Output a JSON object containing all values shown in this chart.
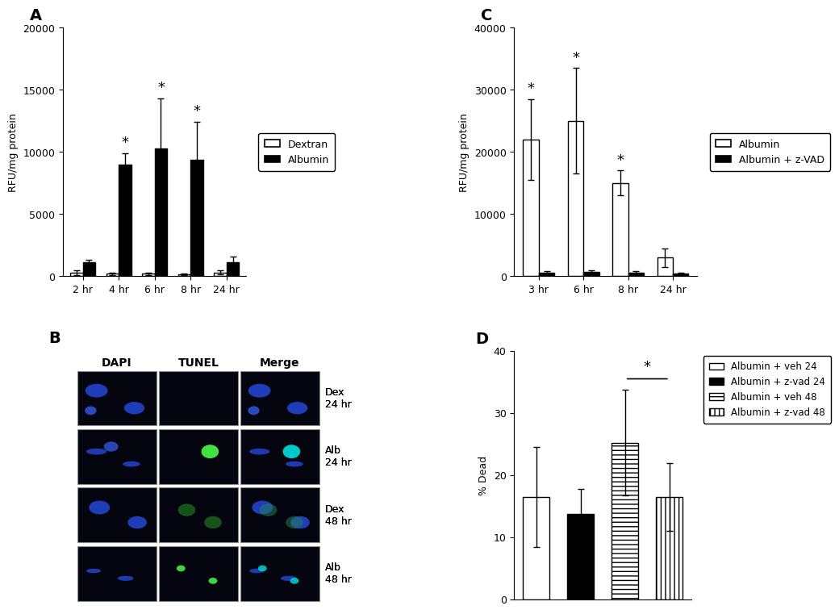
{
  "panel_A": {
    "title": "A",
    "categories": [
      "2 hr",
      "4 hr",
      "6 hr",
      "8 hr",
      "24 hr"
    ],
    "dextran_means": [
      300,
      200,
      200,
      150,
      300
    ],
    "dextran_errors": [
      200,
      100,
      80,
      80,
      150
    ],
    "albumin_means": [
      1100,
      9000,
      10300,
      9400,
      1100
    ],
    "albumin_errors": [
      250,
      900,
      4000,
      3000,
      500
    ],
    "ylabel": "RFU/mg protein",
    "ylim": [
      0,
      20000
    ],
    "yticks": [
      0,
      5000,
      10000,
      15000,
      20000
    ],
    "sig_albumin": [
      false,
      true,
      true,
      true,
      false
    ],
    "legend_labels": [
      "Dextran",
      "Albumin"
    ]
  },
  "panel_C": {
    "title": "C",
    "categories": [
      "3 hr",
      "6 hr",
      "8 hr",
      "24 hr"
    ],
    "albumin_means": [
      22000,
      25000,
      15000,
      3000
    ],
    "albumin_errors": [
      6500,
      8500,
      2000,
      1500
    ],
    "albumin_zvad_means": [
      600,
      700,
      600,
      400
    ],
    "albumin_zvad_errors": [
      200,
      200,
      200,
      150
    ],
    "ylabel": "RFU/mg protein",
    "ylim": [
      0,
      40000
    ],
    "yticks": [
      0,
      10000,
      20000,
      30000,
      40000
    ],
    "sig_albumin": [
      true,
      true,
      true,
      false
    ],
    "legend_labels": [
      "Albumin",
      "Albumin + z-VAD"
    ]
  },
  "panel_D": {
    "title": "D",
    "means": [
      16.5,
      13.8,
      25.2,
      16.5
    ],
    "errors": [
      8.0,
      4.0,
      8.5,
      5.5
    ],
    "ylabel": "% Dead",
    "ylim": [
      0,
      40
    ],
    "yticks": [
      0,
      10,
      20,
      30,
      40
    ],
    "legend_labels": [
      "Albumin + veh 24",
      "Albumin + z-vad 24",
      "Albumin + veh 48",
      "Albumin + z-vad 48"
    ]
  },
  "panel_B": {
    "title": "B",
    "rows": [
      "Dex\n24 hr",
      "Alb\n24 hr",
      "Dex\n48 hr",
      "Alb\n48 hr"
    ],
    "cols": [
      "DAPI",
      "TUNEL",
      "Merge"
    ]
  }
}
